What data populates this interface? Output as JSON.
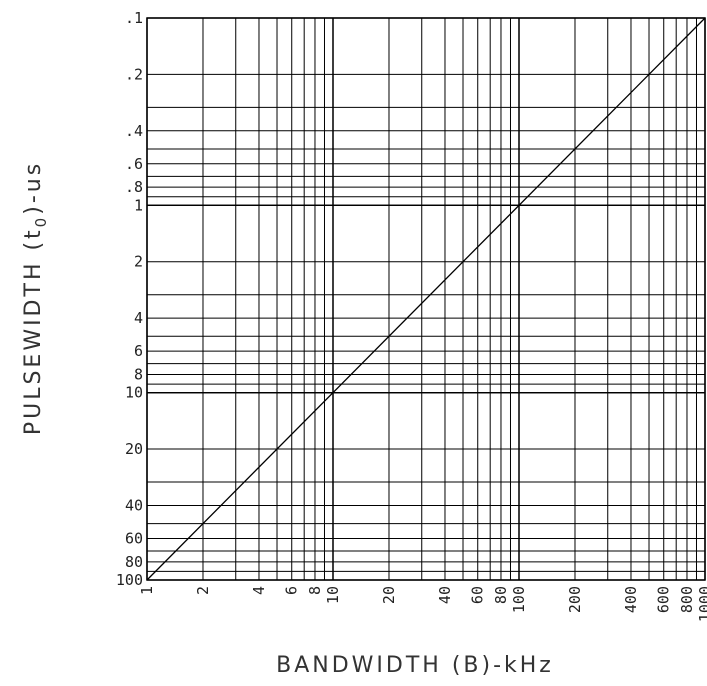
{
  "chart_data": {
    "type": "line",
    "scale": "log-log",
    "grid": true,
    "xlabel": "BANDWIDTH (B)-kHz",
    "ylabel_parts": {
      "prefix": "PULSEWIDTH (t",
      "subscript": "0",
      "suffix": ")-us"
    },
    "x_ticks": [
      1,
      2,
      4,
      6,
      8,
      10,
      20,
      40,
      60,
      80,
      100,
      200,
      400,
      600,
      800,
      1000
    ],
    "x_tick_labels": [
      "1",
      "2",
      "4",
      "6",
      "8",
      "10",
      "20",
      "40",
      "60",
      "80",
      "100",
      "200",
      "400",
      "600",
      "800",
      "1000"
    ],
    "y_ticks": [
      0.1,
      0.2,
      0.4,
      0.6,
      0.8,
      1,
      2,
      4,
      6,
      8,
      10,
      20,
      40,
      60,
      80,
      100
    ],
    "y_tick_labels": [
      ".1",
      ".2",
      ".4",
      ".6",
      ".8",
      "1",
      "2",
      "4",
      "6",
      "8",
      "10",
      "20",
      "40",
      "60",
      "80",
      "100"
    ],
    "xlim": [
      1,
      1000
    ],
    "ylim": [
      0.1,
      100
    ],
    "y_inverted": true,
    "series": [
      {
        "points": [
          [
            1,
            100
          ],
          [
            1000,
            0.1
          ]
        ]
      }
    ]
  }
}
